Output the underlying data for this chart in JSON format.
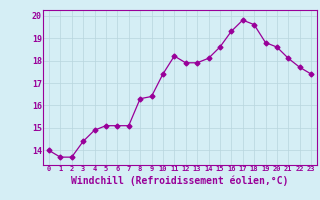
{
  "x": [
    0,
    1,
    2,
    3,
    4,
    5,
    6,
    7,
    8,
    9,
    10,
    11,
    12,
    13,
    14,
    15,
    16,
    17,
    18,
    19,
    20,
    21,
    22,
    23
  ],
  "y": [
    14.0,
    13.7,
    13.7,
    14.4,
    14.9,
    15.1,
    15.1,
    15.1,
    16.3,
    16.4,
    17.4,
    18.2,
    17.9,
    17.9,
    18.1,
    18.6,
    19.3,
    19.8,
    19.6,
    18.8,
    18.6,
    18.1,
    17.7,
    17.4
  ],
  "line_color": "#990099",
  "marker": "D",
  "markersize": 2.5,
  "linewidth": 0.9,
  "xlabel": "Windchill (Refroidissement éolien,°C)",
  "xlabel_fontsize": 7,
  "xtick_labels": [
    "0",
    "1",
    "2",
    "3",
    "4",
    "5",
    "6",
    "7",
    "8",
    "9",
    "10",
    "11",
    "12",
    "13",
    "14",
    "15",
    "16",
    "17",
    "18",
    "19",
    "20",
    "21",
    "22",
    "23"
  ],
  "ytick_labels": [
    "14",
    "15",
    "16",
    "17",
    "18",
    "19",
    "20"
  ],
  "yticks": [
    14,
    15,
    16,
    17,
    18,
    19,
    20
  ],
  "ylim": [
    13.35,
    20.25
  ],
  "xlim": [
    -0.5,
    23.5
  ],
  "bg_color": "#d5eef5",
  "grid_color": "#b8d5de",
  "tick_color": "#990099",
  "tick_label_color": "#990099",
  "spine_color": "#990099"
}
